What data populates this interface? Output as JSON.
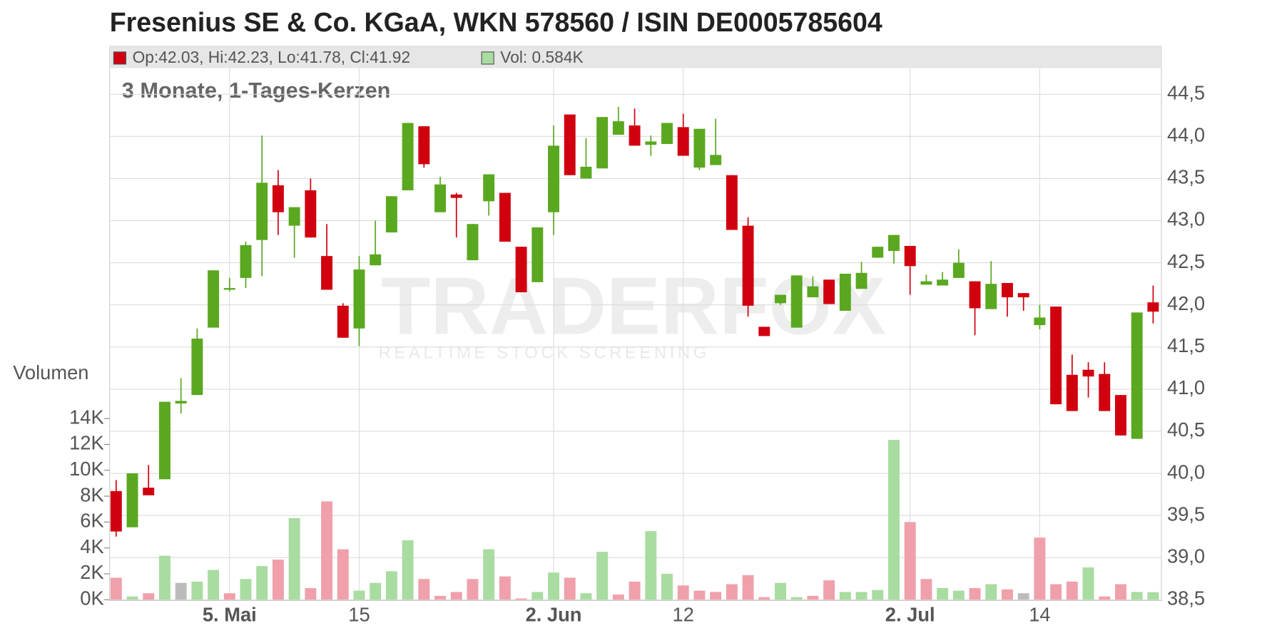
{
  "chart_data": {
    "type": "candlestick",
    "title": "Fresenius SE & Co. KGaA, WKN 578560 / ISIN DE0005785604",
    "subtitle": "3 Monate, 1-Tages-Kerzen",
    "ohlc_label": "Op:42.03, Hi:42.23, Lo:41.78, Cl:41.92",
    "volume_label": "Vol: 0.584K",
    "volume_axis_label": "Volumen",
    "watermark": {
      "brand": "TRADERFOX",
      "tagline": "REALTIME STOCK SCREENING"
    },
    "categories": [
      null,
      null,
      null,
      null,
      null,
      null,
      null,
      "5. Mai",
      null,
      null,
      null,
      null,
      null,
      null,
      null,
      "15",
      null,
      null,
      null,
      null,
      null,
      null,
      null,
      null,
      null,
      null,
      null,
      "2. Jun",
      null,
      null,
      null,
      null,
      null,
      null,
      null,
      "12",
      null,
      null,
      null,
      null,
      null,
      null,
      null,
      null,
      null,
      null,
      null,
      null,
      null,
      "2. Jul",
      null,
      null,
      null,
      null,
      null,
      null,
      null,
      "14",
      null,
      null,
      null,
      null,
      null,
      null,
      null
    ],
    "open": [
      39.79,
      39.36,
      39.83,
      39.93,
      40.83,
      40.93,
      41.73,
      42.18,
      42.32,
      42.77,
      43.42,
      42.94,
      43.36,
      42.58,
      41.99,
      41.72,
      42.47,
      42.86,
      43.36,
      44.12,
      43.1,
      43.31,
      42.53,
      43.23,
      43.33,
      42.69,
      42.27,
      43.1,
      44.26,
      43.5,
      43.62,
      44.02,
      44.13,
      43.9,
      43.91,
      44.11,
      43.63,
      43.66,
      43.54,
      42.94,
      41.74,
      42.02,
      41.73,
      42.09,
      42.3,
      41.93,
      42.19,
      42.56,
      42.64,
      42.7,
      42.24,
      42.23,
      42.32,
      42.28,
      41.95,
      42.26,
      42.14,
      41.76,
      41.98,
      41.17,
      41.23,
      41.18,
      40.93,
      40.41,
      42.03
    ],
    "high": [
      39.92,
      40.0,
      40.1,
      40.85,
      41.13,
      41.72,
      42.41,
      42.32,
      42.75,
      44.01,
      43.6,
      43.16,
      43.5,
      42.96,
      42.02,
      42.58,
      43.0,
      43.29,
      44.16,
      44.12,
      43.52,
      43.33,
      42.96,
      43.55,
      43.33,
      42.69,
      42.92,
      44.13,
      44.26,
      43.98,
      44.23,
      44.35,
      44.33,
      44.01,
      44.16,
      44.27,
      44.09,
      44.21,
      43.54,
      43.04,
      41.74,
      42.12,
      42.35,
      42.34,
      42.3,
      42.37,
      42.51,
      42.69,
      42.83,
      42.7,
      42.36,
      42.39,
      42.66,
      42.28,
      42.52,
      42.26,
      42.14,
      42.0,
      41.98,
      41.41,
      41.32,
      41.32,
      40.93,
      41.91,
      42.23
    ],
    "low": [
      39.25,
      39.36,
      39.74,
      39.93,
      40.71,
      40.93,
      41.73,
      42.16,
      42.2,
      42.34,
      42.83,
      42.56,
      42.8,
      42.18,
      41.61,
      41.51,
      42.47,
      42.86,
      43.36,
      43.63,
      43.1,
      42.8,
      42.53,
      43.06,
      42.75,
      42.15,
      42.27,
      42.83,
      43.54,
      43.5,
      43.62,
      44.02,
      43.89,
      43.77,
      43.91,
      43.77,
      43.6,
      43.66,
      42.89,
      41.86,
      41.63,
      42.0,
      41.73,
      42.09,
      42.01,
      41.93,
      42.19,
      42.56,
      42.49,
      42.12,
      42.24,
      42.23,
      42.32,
      41.64,
      41.95,
      41.86,
      41.93,
      41.71,
      40.82,
      40.74,
      40.9,
      40.74,
      40.45,
      40.41,
      41.78
    ],
    "close": [
      39.31,
      40.0,
      39.74,
      40.85,
      40.86,
      41.6,
      42.41,
      42.2,
      42.71,
      43.45,
      43.1,
      43.16,
      42.8,
      42.18,
      41.61,
      42.42,
      42.6,
      43.29,
      44.16,
      43.67,
      43.43,
      43.27,
      42.96,
      43.55,
      42.75,
      42.15,
      42.92,
      43.89,
      43.54,
      43.64,
      44.23,
      44.18,
      43.89,
      43.94,
      44.16,
      43.77,
      44.09,
      43.78,
      42.89,
      41.99,
      41.63,
      42.12,
      42.35,
      42.22,
      42.01,
      42.37,
      42.38,
      42.69,
      42.83,
      42.46,
      42.28,
      42.3,
      42.5,
      41.96,
      42.25,
      42.09,
      42.09,
      41.85,
      40.82,
      40.74,
      41.15,
      40.74,
      40.45,
      41.91,
      41.92
    ],
    "volume": [
      1.7,
      0.25,
      0.5,
      3.4,
      1.3,
      1.4,
      2.3,
      0.5,
      1.6,
      2.6,
      3.1,
      6.3,
      0.9,
      7.6,
      3.9,
      0.7,
      1.3,
      2.2,
      4.6,
      1.6,
      0.3,
      0.6,
      1.6,
      3.9,
      1.8,
      0.1,
      0.6,
      2.1,
      1.7,
      0.5,
      3.7,
      0.4,
      1.4,
      5.3,
      2.0,
      1.1,
      0.7,
      0.6,
      1.2,
      1.9,
      0.2,
      1.3,
      0.2,
      0.3,
      1.5,
      0.6,
      0.6,
      0.75,
      12.35,
      6.0,
      1.6,
      0.9,
      0.7,
      0.9,
      1.2,
      0.8,
      0.5,
      4.8,
      1.2,
      1.4,
      2.5,
      0.25,
      1.2,
      0.6,
      0.584
    ],
    "volume_colors": [
      "#f0a0aa",
      "#a8dca0",
      "#f0a0aa",
      "#a8dca0",
      "#bbbbbb",
      "#a8dca0",
      "#a8dca0",
      "#f0a0aa",
      "#a8dca0",
      "#a8dca0",
      "#f0a0aa",
      "#a8dca0",
      "#f0a0aa",
      "#f0a0aa",
      "#f0a0aa",
      "#a8dca0",
      "#a8dca0",
      "#a8dca0",
      "#a8dca0",
      "#f0a0aa",
      "#f0a0aa",
      "#f0a0aa",
      "#f0a0aa",
      "#a8dca0",
      "#f0a0aa",
      "#f0a0aa",
      "#a8dca0",
      "#a8dca0",
      "#f0a0aa",
      "#a8dca0",
      "#a8dca0",
      "#f0a0aa",
      "#f0a0aa",
      "#a8dca0",
      "#a8dca0",
      "#f0a0aa",
      "#f0a0aa",
      "#f0a0aa",
      "#f0a0aa",
      "#f0a0aa",
      "#f0a0aa",
      "#a8dca0",
      "#a8dca0",
      "#f0a0aa",
      "#f0a0aa",
      "#a8dca0",
      "#a8dca0",
      "#a8dca0",
      "#a8dca0",
      "#f0a0aa",
      "#f0a0aa",
      "#a8dca0",
      "#a8dca0",
      "#f0a0aa",
      "#a8dca0",
      "#f0a0aa",
      "#bbbbbb",
      "#f0a0aa",
      "#f0a0aa",
      "#f0a0aa",
      "#a8dca0",
      "#f0a0aa",
      "#f0a0aa",
      "#a8dca0",
      "#a8dca0"
    ],
    "up_color": "#5aa820",
    "down_color": "#d0000f",
    "ylim": [
      38.5,
      44.81
    ],
    "yticks": [
      {
        "value": 38.5,
        "label": "38,5"
      },
      {
        "value": 39.0,
        "label": "39,0"
      },
      {
        "value": 39.5,
        "label": "39,5"
      },
      {
        "value": 40.0,
        "label": "40,0"
      },
      {
        "value": 40.5,
        "label": "40,5"
      },
      {
        "value": 41.0,
        "label": "41,0"
      },
      {
        "value": 41.5,
        "label": "41,5"
      },
      {
        "value": 42.0,
        "label": "42,0"
      },
      {
        "value": 42.5,
        "label": "42,5"
      },
      {
        "value": 43.0,
        "label": "43,0"
      },
      {
        "value": 43.5,
        "label": "43,5"
      },
      {
        "value": 44.0,
        "label": "44,0"
      },
      {
        "value": 44.5,
        "label": "44,5"
      }
    ],
    "y2lim": [
      0,
      41.07
    ],
    "y2ticks": [
      {
        "value": 0,
        "label": "0K"
      },
      {
        "value": 2,
        "label": "2K"
      },
      {
        "value": 4,
        "label": "4K"
      },
      {
        "value": 6,
        "label": "6K"
      },
      {
        "value": 8,
        "label": "8K"
      },
      {
        "value": 10,
        "label": "10K"
      },
      {
        "value": 12,
        "label": "12K"
      },
      {
        "value": 14,
        "label": "14K"
      }
    ],
    "grid": true
  }
}
